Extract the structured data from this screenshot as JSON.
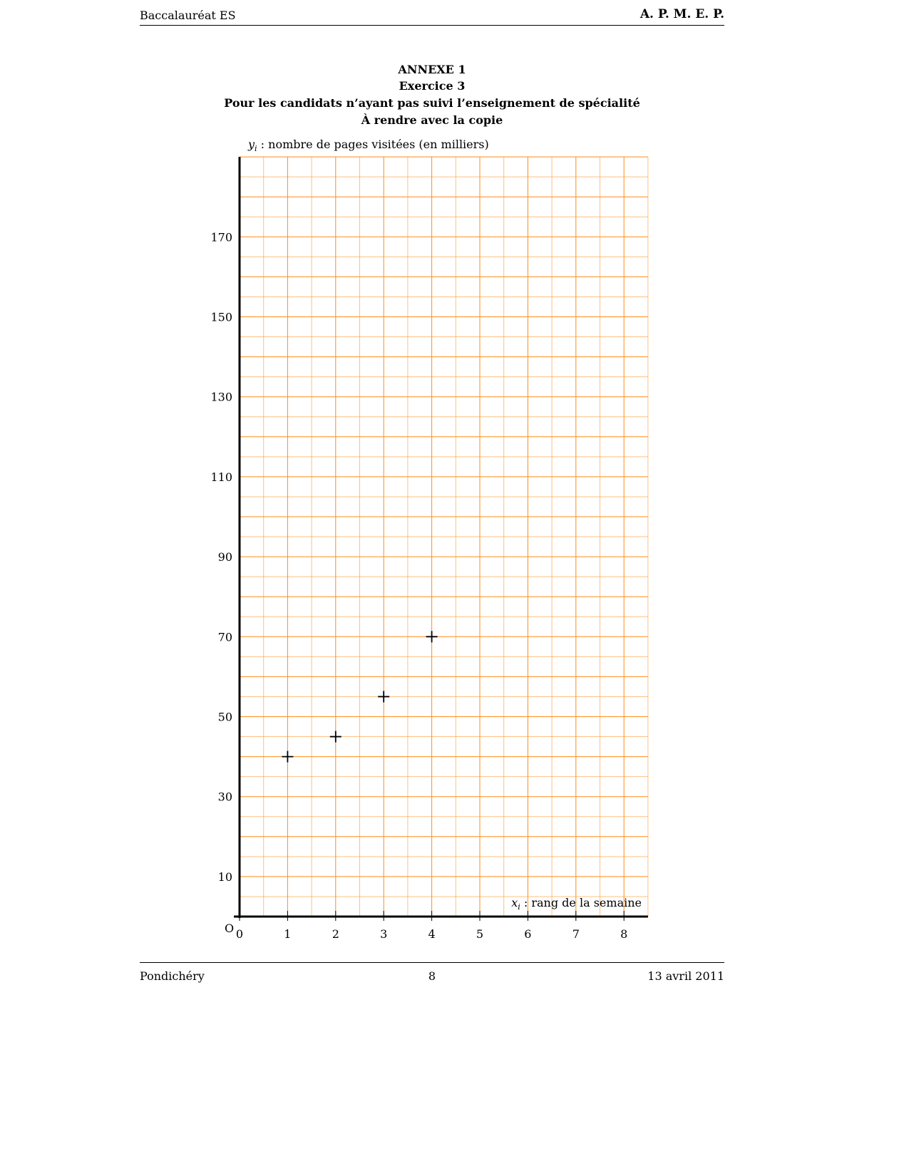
{
  "header": {
    "left": "Baccalauréat ES",
    "right": "A. P. M. E. P."
  },
  "titles": [
    "ANNEXE 1",
    "Exercice 3",
    "Pour les candidats n’ayant pas suivi l’enseignement de spécialité",
    "À rendre avec la copie"
  ],
  "footer": {
    "left": "Pondichéry",
    "center": "8",
    "right": "13 avril 2011"
  },
  "chart_data": {
    "type": "scatter",
    "ylabel_var": "y",
    "ylabel_sub": "i",
    "ylabel": " : nombre de pages visitées (en milliers)",
    "xlabel_var": "x",
    "xlabel_sub": "i",
    "xlabel": " : rang de la semaine",
    "origin_label": "O",
    "xlim": [
      0,
      8.5
    ],
    "ylim": [
      0,
      190
    ],
    "x_ticks": [
      0,
      1,
      2,
      3,
      4,
      5,
      6,
      7,
      8
    ],
    "y_ticks": [
      10,
      30,
      50,
      70,
      90,
      110,
      130,
      150,
      170
    ],
    "grid": true,
    "grid_step": {
      "x": 0.5,
      "y": 5
    },
    "grid_color": "#ff8c1a",
    "marker": "plus",
    "points": [
      {
        "x": 1,
        "y": 40
      },
      {
        "x": 2,
        "y": 45
      },
      {
        "x": 3,
        "y": 55
      },
      {
        "x": 4,
        "y": 70
      }
    ]
  }
}
